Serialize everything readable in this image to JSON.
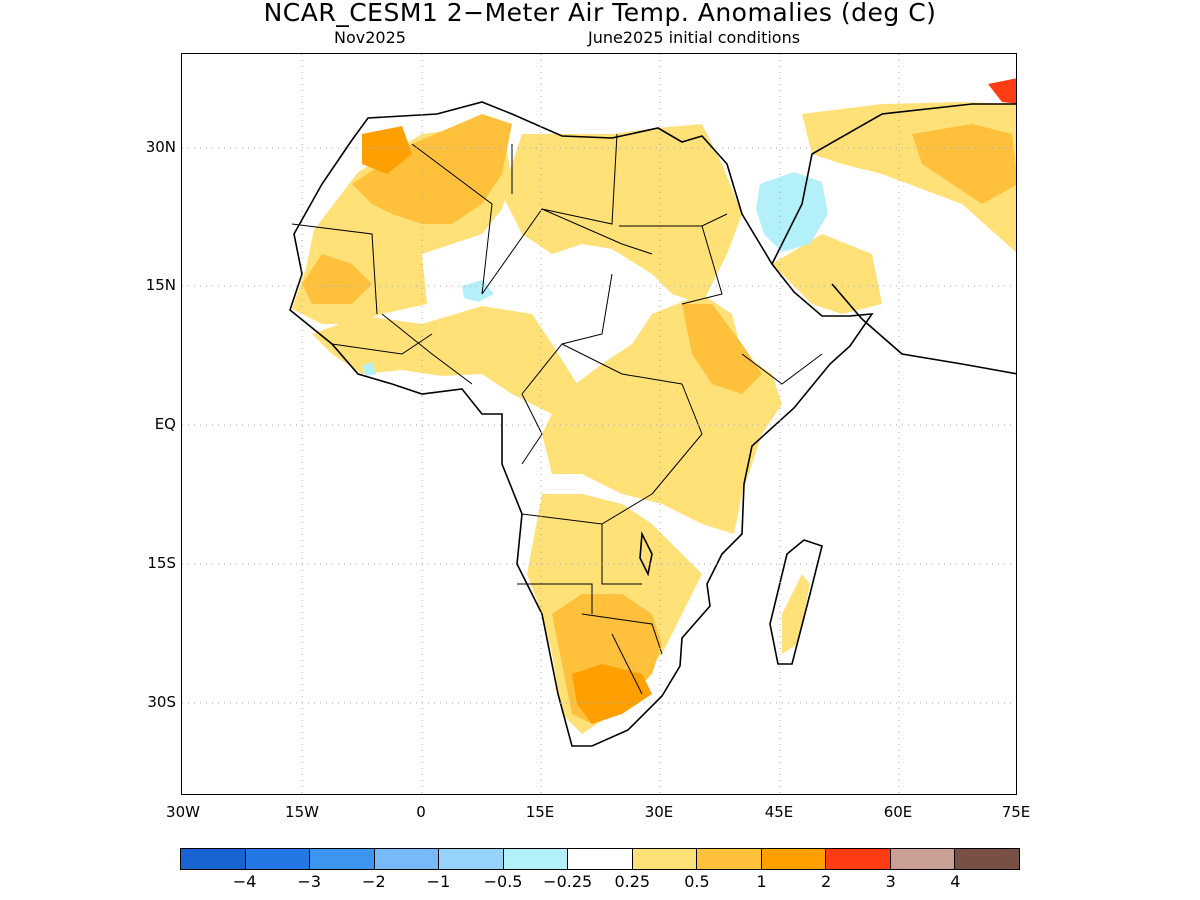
{
  "header": {
    "title": "NCAR_CESM1 2−Meter Air Temp. Anomalies (deg C)",
    "valid_month": "Nov2025",
    "init_label": "June2025 initial conditions"
  },
  "axes": {
    "lat_labels": [
      "30N",
      "15N",
      "EQ",
      "15S",
      "30S"
    ],
    "lon_labels": [
      "30W",
      "15W",
      "0",
      "15E",
      "30E",
      "45E",
      "60E",
      "75E"
    ]
  },
  "legend": {
    "colors": [
      "#1964d2",
      "#2478e6",
      "#3c96f0",
      "#78b9fa",
      "#96d2fa",
      "#b4f0fa",
      "#ffffff",
      "#ffe178",
      "#ffc03c",
      "#ffa000",
      "#ff3c14",
      "#c8a096",
      "#785046"
    ],
    "labels": [
      "−4",
      "−3",
      "−2",
      "−1",
      "−0.5",
      "−0.25",
      "0.25",
      "0.5",
      "1",
      "2",
      "3",
      "4"
    ]
  },
  "map": {
    "lon_range": [
      -30,
      75
    ],
    "lat_range": [
      -40,
      38
    ]
  }
}
